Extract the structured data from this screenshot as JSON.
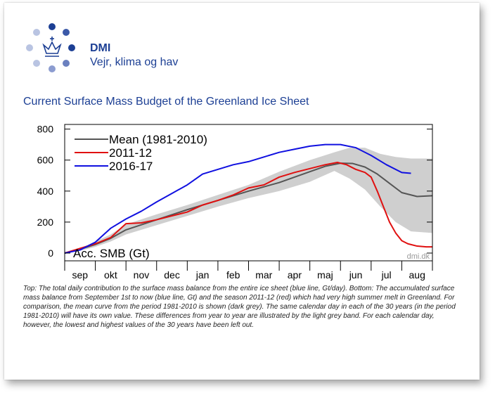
{
  "header": {
    "brand": "DMI",
    "tagline": "Vejr, klima og hav",
    "logo_icon": "crown-dots-icon"
  },
  "page_title": "Current Surface Mass Budget of the Greenland Ice Sheet",
  "caption": "Top: The total daily contribution to the surface mass balance from the entire ice sheet (blue line, Gt/day). Bottom: The accumulated surface mass balance from September 1st to now (blue line, Gt) and the season 2011-12 (red) which had very high summer melt in Greenland. For comparison, the mean curve from the period 1981-2010 is shown (dark grey). The same calendar day in each of the 30 years (in the period 1981-2010) will have its own value. These differences from year to year are illustrated by the light grey band. For each calendar day, however, the lowest and highest values of the 30 years have been left out.",
  "chart_data": {
    "type": "line",
    "ylabel": "Acc. SMB (Gt)",
    "watermark": "dmi.dk",
    "ylim": [
      -50,
      830
    ],
    "xlim": [
      0,
      12
    ],
    "yticks": [
      0,
      200,
      400,
      600,
      800
    ],
    "months": [
      "sep",
      "okt",
      "nov",
      "dec",
      "jan",
      "feb",
      "mar",
      "apr",
      "maj",
      "jun",
      "jul",
      "aug"
    ],
    "legend_position": "top-left",
    "band": {
      "x": [
        0,
        0.5,
        1,
        1.5,
        2,
        3,
        4,
        5,
        6,
        7,
        8,
        8.8,
        9.3,
        9.8,
        10.3,
        10.8,
        11.3,
        12
      ],
      "lower": [
        0,
        15,
        40,
        75,
        120,
        180,
        240,
        300,
        355,
        400,
        460,
        530,
        480,
        410,
        300,
        200,
        140,
        130
      ],
      "upper": [
        0,
        30,
        75,
        120,
        185,
        250,
        310,
        375,
        440,
        525,
        600,
        650,
        680,
        680,
        640,
        620,
        610,
        610
      ]
    },
    "series": [
      {
        "name": "Mean (1981-2010)",
        "color": "#555555",
        "x": [
          0,
          0.5,
          1,
          1.5,
          2,
          3,
          4,
          5,
          6,
          7,
          8,
          8.5,
          9,
          9.4,
          9.8,
          10.2,
          10.6,
          11,
          11.5,
          12
        ],
        "y": [
          0,
          25,
          55,
          95,
          150,
          215,
          280,
          340,
          400,
          455,
          525,
          560,
          580,
          578,
          555,
          510,
          450,
          390,
          365,
          370
        ]
      },
      {
        "name": "2011-12",
        "color": "#e01010",
        "x": [
          0,
          0.5,
          1,
          1.5,
          2,
          2.5,
          3,
          3.5,
          4,
          4.5,
          5,
          5.5,
          6,
          6.5,
          7,
          7.5,
          8,
          8.5,
          8.9,
          9.2,
          9.5,
          9.8,
          10,
          10.2,
          10.4,
          10.6,
          10.8,
          11,
          11.2,
          11.5,
          11.8,
          12
        ],
        "y": [
          0,
          30,
          60,
          100,
          190,
          195,
          215,
          240,
          265,
          310,
          340,
          375,
          420,
          440,
          490,
          520,
          545,
          570,
          585,
          570,
          540,
          520,
          490,
          400,
          300,
          200,
          130,
          80,
          60,
          45,
          40,
          40
        ]
      },
      {
        "name": "2016-17",
        "color": "#1010e0",
        "x": [
          0,
          0.5,
          1,
          1.5,
          2,
          2.5,
          3,
          3.5,
          4,
          4.5,
          5,
          5.5,
          6,
          6.5,
          7,
          7.5,
          8,
          8.5,
          9,
          9.5,
          10,
          10.5,
          11,
          11.3
        ],
        "y": [
          0,
          20,
          70,
          160,
          220,
          270,
          330,
          385,
          440,
          510,
          540,
          570,
          590,
          620,
          650,
          670,
          690,
          700,
          700,
          680,
          630,
          570,
          520,
          515
        ]
      }
    ]
  }
}
